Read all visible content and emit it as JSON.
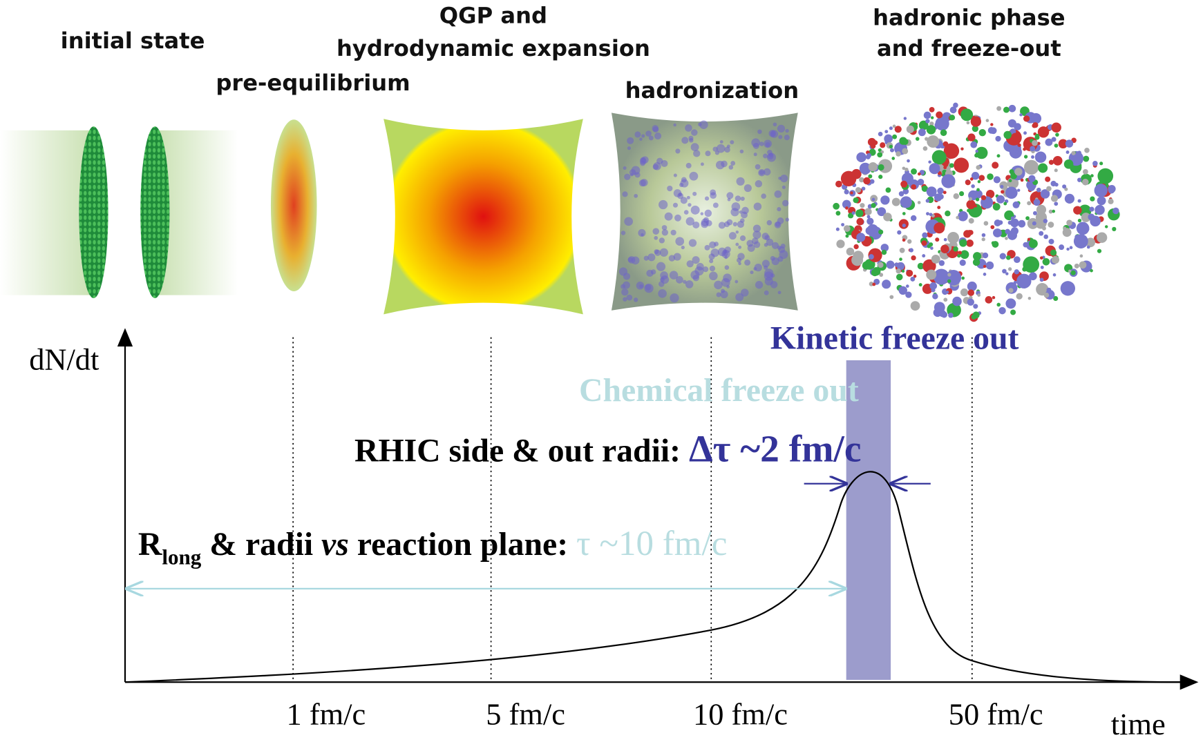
{
  "stages": [
    {
      "lines": [
        "initial state"
      ]
    },
    {
      "lines": [
        "pre-equilibrium"
      ]
    },
    {
      "lines": [
        "QGP and",
        "hydrodynamic expansion"
      ]
    },
    {
      "lines": [
        "hadronization"
      ]
    },
    {
      "lines": [
        "hadronic phase",
        "and freeze-out"
      ]
    }
  ],
  "axis": {
    "y_label": "dN/dt",
    "x_label": "time",
    "ticks": [
      "1 fm/c",
      "5 fm/c",
      "10 fm/c",
      "50 fm/c"
    ]
  },
  "annotations": {
    "kinetic": "Kinetic freeze out",
    "chemical": "Chemical freeze out",
    "rhic": {
      "text": "RHIC side & out radii: ",
      "value": "Δτ ~2 fm/c"
    },
    "rlong": {
      "r": "R",
      "sub": "long",
      "mid": " & radii ",
      "vs": "vs",
      "end": " reaction plane: ",
      "value": "τ ~10 fm/c"
    }
  }
}
